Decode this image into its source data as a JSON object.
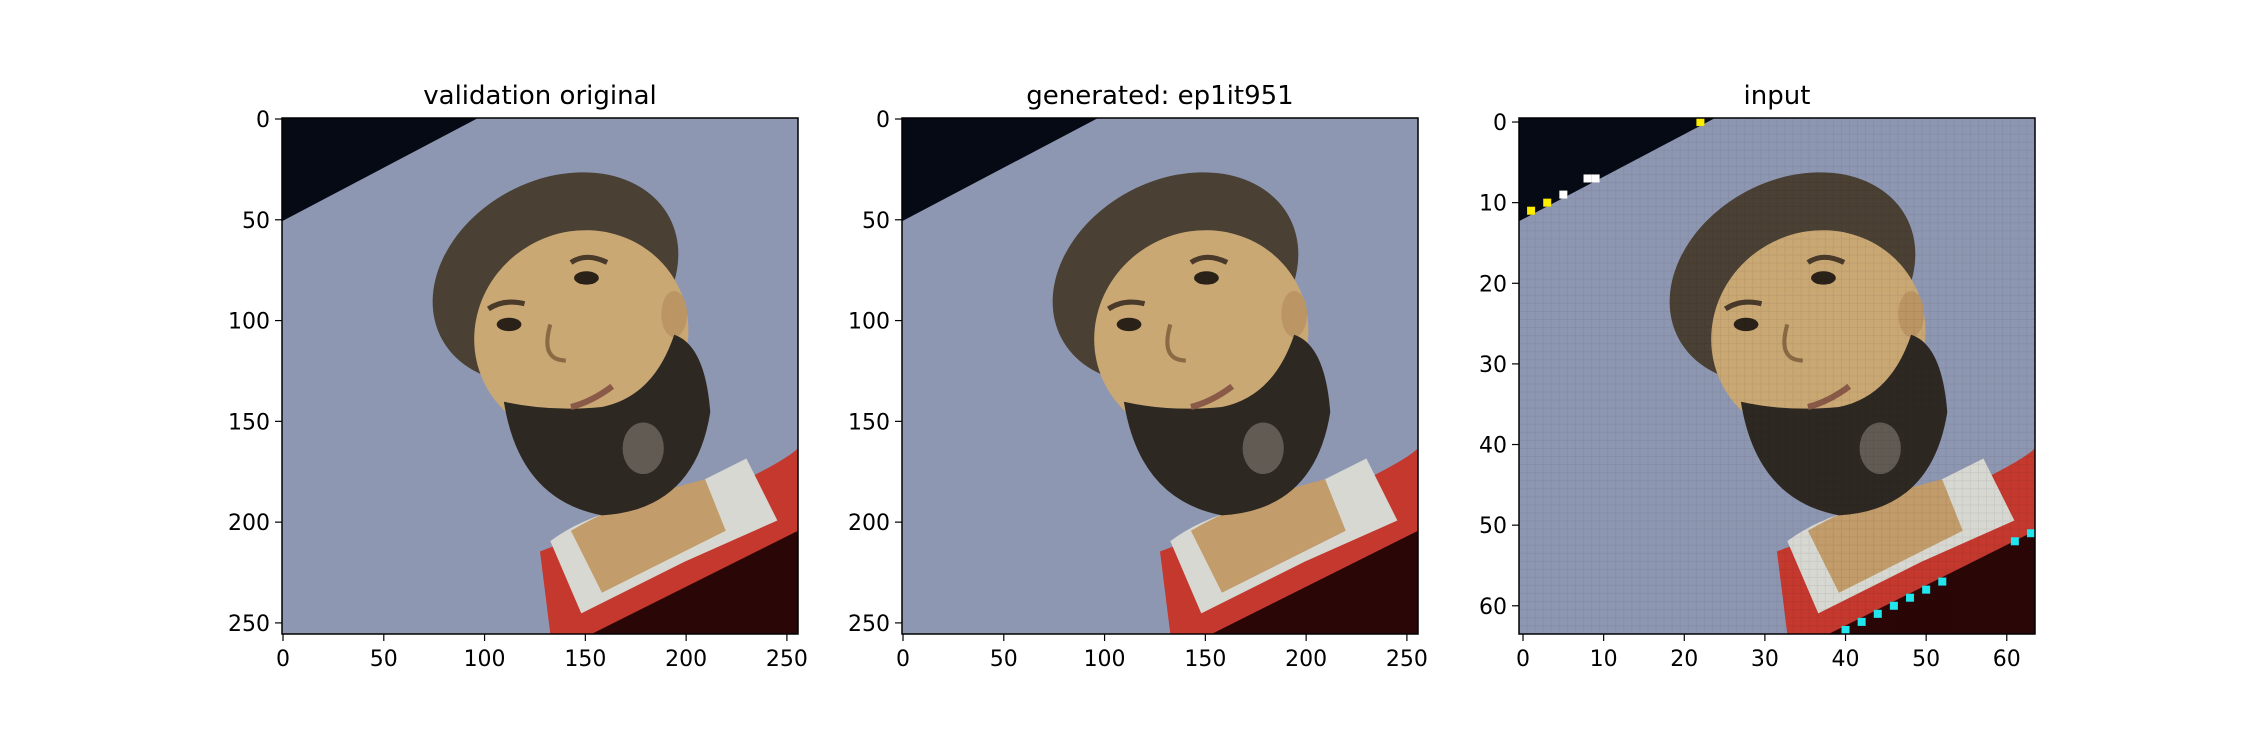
{
  "figure": {
    "background": "#ffffff",
    "panels": [
      {
        "id": "validation-original",
        "title": "validation original",
        "image_size": 256,
        "x_ticks": [
          "0",
          "50",
          "100",
          "150",
          "200",
          "250"
        ],
        "y_ticks": [
          "0",
          "50",
          "100",
          "150",
          "200",
          "250"
        ],
        "tick_values": [
          0,
          50,
          100,
          150,
          200,
          250
        ],
        "pixelated": false
      },
      {
        "id": "generated",
        "title": "generated: ep1it951",
        "image_size": 256,
        "x_ticks": [
          "0",
          "50",
          "100",
          "150",
          "200",
          "250"
        ],
        "y_ticks": [
          "0",
          "50",
          "100",
          "150",
          "200",
          "250"
        ],
        "tick_values": [
          0,
          50,
          100,
          150,
          200,
          250
        ],
        "pixelated": false
      },
      {
        "id": "input",
        "title": "input",
        "image_size": 64,
        "x_ticks": [
          "0",
          "10",
          "20",
          "30",
          "40",
          "50",
          "60"
        ],
        "y_ticks": [
          "0",
          "10",
          "20",
          "30",
          "40",
          "50",
          "60"
        ],
        "tick_values": [
          0,
          10,
          20,
          30,
          40,
          50,
          60
        ],
        "pixelated": true
      }
    ],
    "colors": {
      "backdrop": "#8e97b2",
      "corner_dark": "#050a14",
      "skin": "#caa874",
      "hair": "#4a4034",
      "beard": "#2e2822",
      "shirt_red": "#c4382e",
      "collar": "#d8d8d2",
      "shadow_dark": "#2a0606",
      "marker_yellow": "#ffee00",
      "marker_cyan": "#22e6ee"
    }
  }
}
